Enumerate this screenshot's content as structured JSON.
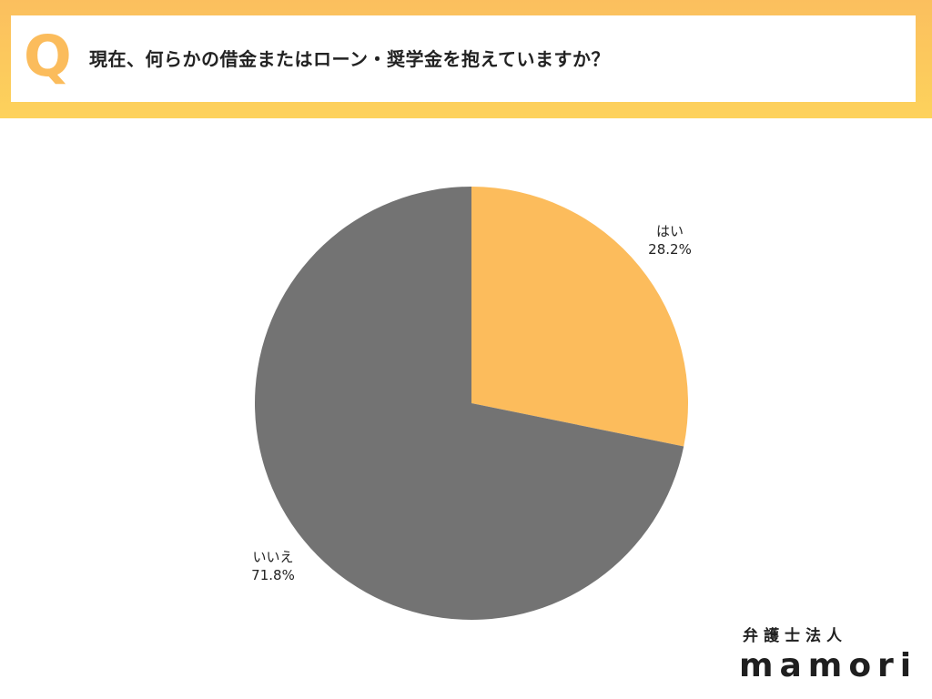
{
  "header": {
    "q_letter": "Q",
    "question": "現在、何らかの借金またはローン・奨学金を抱えていますか？"
  },
  "chart_data": {
    "type": "pie",
    "slices": [
      {
        "label": "はい",
        "value": 28.2,
        "value_text": "28.2%",
        "color": "#fcbc5c"
      },
      {
        "label": "いいえ",
        "value": 71.8,
        "value_text": "71.8%",
        "color": "#737373"
      }
    ],
    "start": "12 o'clock",
    "direction": "clockwise"
  },
  "logo": {
    "sub": "弁護士法人",
    "main": "mamori"
  }
}
